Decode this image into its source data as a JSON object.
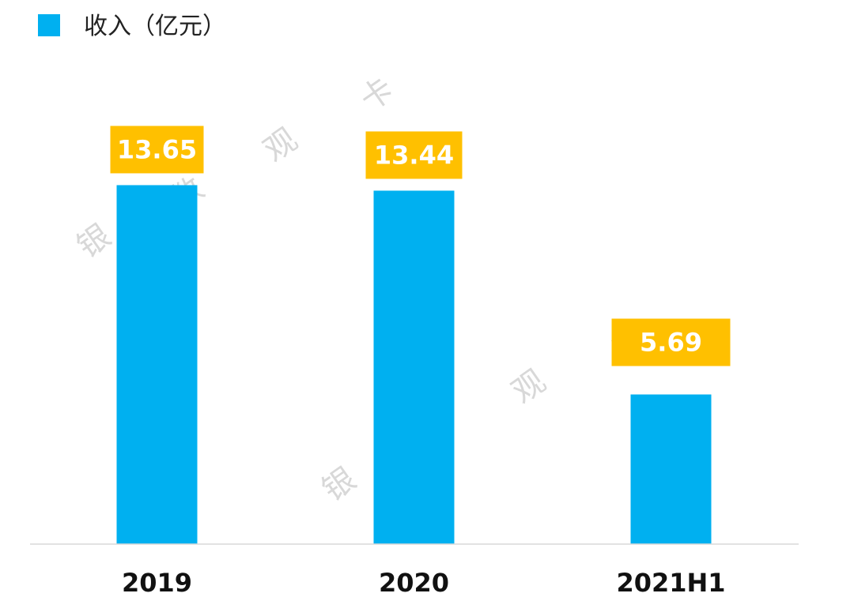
{
  "chart_data": {
    "type": "bar",
    "title": "",
    "xlabel": "",
    "ylabel": "",
    "categories": [
      "2019",
      "2020",
      "2021H1"
    ],
    "series": [
      {
        "name": "收入（亿元）",
        "values": [
          13.65,
          13.44,
          5.69
        ]
      }
    ],
    "value_labels": [
      "13.65",
      "13.44",
      "5.69"
    ],
    "ylim": [
      0,
      15
    ],
    "grid": false,
    "legend": "top-left"
  },
  "colors": {
    "bar": "#00b0f0",
    "label_bg": "#ffc000",
    "label_text": "#ffffff",
    "axis": "#d9d9d9"
  },
  "watermark": {
    "chars": [
      "银",
      "数",
      "观",
      "卡"
    ]
  }
}
